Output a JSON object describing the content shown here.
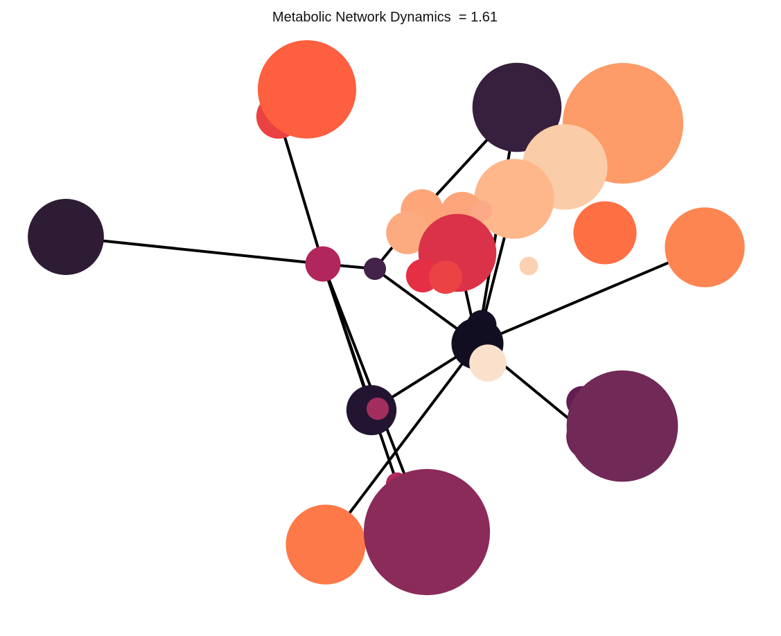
{
  "title": "Metabolic Network Dynamics  = 1.61",
  "colors": {
    "background": "#ffffff",
    "edge": "#000000"
  },
  "nodes": [
    {
      "id": "n1",
      "color": "#ea4142",
      "size": 2.4
    },
    {
      "id": "n2",
      "color": "#fd5f3f",
      "size": 5.3
    },
    {
      "id": "n3",
      "color": "#371f3e",
      "size": 4.8
    },
    {
      "id": "n4",
      "color": "#fd9b69",
      "size": 6.5
    },
    {
      "id": "n5",
      "color": "#fbcca8",
      "size": 4.6
    },
    {
      "id": "n6",
      "color": "#fdb78a",
      "size": 4.3
    },
    {
      "id": "n7",
      "color": "#fda67a",
      "size": 2.3
    },
    {
      "id": "n8",
      "color": "#fda57a",
      "size": 2.4
    },
    {
      "id": "n9",
      "color": "#fba986",
      "size": 1.1
    },
    {
      "id": "n10",
      "color": "#fcab80",
      "size": 2.3
    },
    {
      "id": "n11",
      "color": "#d93249",
      "size": 4.2
    },
    {
      "id": "n12",
      "color": "#e52f45",
      "size": 1.8
    },
    {
      "id": "n13",
      "color": "#eb4343",
      "size": 1.8
    },
    {
      "id": "n14",
      "color": "#fe6f44",
      "size": 3.4
    },
    {
      "id": "n15",
      "color": "#fd8552",
      "size": 4.3
    },
    {
      "id": "n16",
      "color": "#fcd1b2",
      "size": 1.0
    },
    {
      "id": "n17",
      "color": "#2e1c35",
      "size": 4.1
    },
    {
      "id": "n18",
      "color": "#b1275d",
      "size": 1.9
    },
    {
      "id": "n19",
      "color": "#43234a",
      "size": 1.2
    },
    {
      "id": "n20",
      "color": "#140f24",
      "size": 1.6
    },
    {
      "id": "n21",
      "color": "#120e22",
      "size": 2.8
    },
    {
      "id": "n22",
      "color": "#fbe1cc",
      "size": 2.0
    },
    {
      "id": "n23",
      "color": "#621e53",
      "size": 1.7
    },
    {
      "id": "n24",
      "color": "#6b2255",
      "size": 2.6
    },
    {
      "id": "n25",
      "color": "#712957",
      "size": 6.0
    },
    {
      "id": "n26",
      "color": "#231532",
      "size": 2.7
    },
    {
      "id": "n27",
      "color": "#a32e5e",
      "size": 1.2
    },
    {
      "id": "n28",
      "color": "#b2295e",
      "size": 1.2
    },
    {
      "id": "n29",
      "color": "#fd7949",
      "size": 4.3
    },
    {
      "id": "n30",
      "color": "#8b2b5a",
      "size": 6.8
    }
  ],
  "edges": [
    [
      "n1",
      "n18"
    ],
    [
      "n17",
      "n18"
    ],
    [
      "n18",
      "n19"
    ],
    [
      "n18",
      "n26"
    ],
    [
      "n18",
      "n28"
    ],
    [
      "n18",
      "n30"
    ],
    [
      "n19",
      "n21"
    ],
    [
      "n19",
      "n7"
    ],
    [
      "n7",
      "n3"
    ],
    [
      "n3",
      "n21"
    ],
    [
      "n21",
      "n15"
    ],
    [
      "n21",
      "n24"
    ],
    [
      "n21",
      "n26"
    ],
    [
      "n21",
      "n29"
    ],
    [
      "n21",
      "n6"
    ],
    [
      "n11",
      "n21"
    ]
  ]
}
